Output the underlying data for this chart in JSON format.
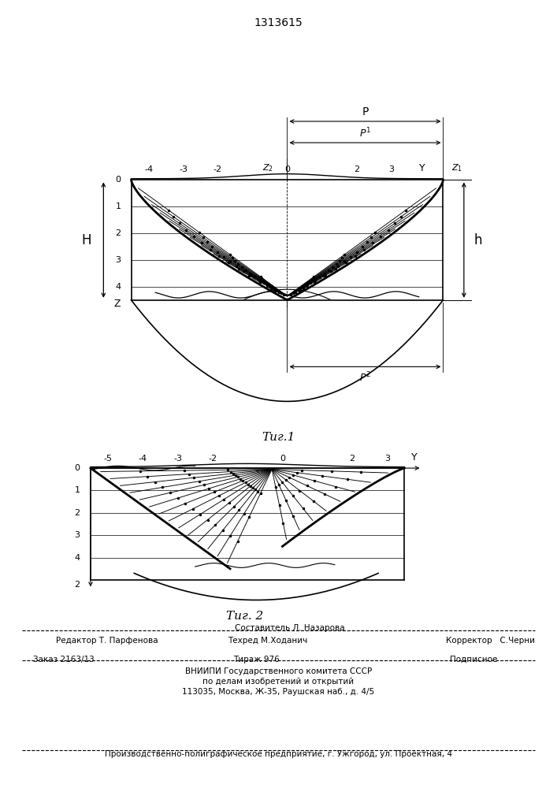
{
  "title": "1313615",
  "fig1_label": "Τиг.1",
  "fig2_label": "Τиг. 2",
  "bg_color": "#ffffff",
  "line_color": "#000000",
  "footer_line1": "Составитель Л. Назарова",
  "footer_line2_left": "Редактор Т. Парфенова",
  "footer_line2_mid": "Техред М.Ходанич",
  "footer_line2_right": "Корректор   С.Черни",
  "footer_line3_left": "Заказ 2163/13",
  "footer_line3_mid": "Тираж 976",
  "footer_line3_right": "Подписное",
  "footer_line4": "ВНИИПИ Государственного комитета СССР",
  "footer_line5": "по делам изобретений и открытий",
  "footer_line6": "113035, Москва, Ж-35, Раушская наб., д. 4/5",
  "footer_line7": "Производственно-полиграфическое предприятие, г. Ужгород, ул. Проектная, 4"
}
